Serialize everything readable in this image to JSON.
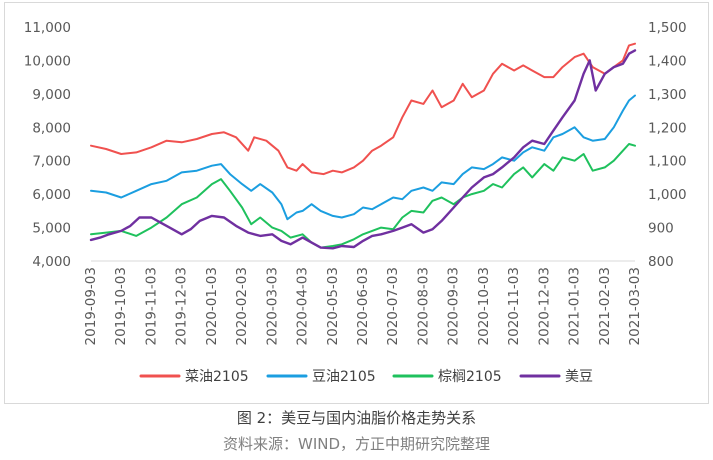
{
  "figure": {
    "caption": "图 2：美豆与国内油脂价格走势关系",
    "source": "资料来源：WIND，方正中期研究院整理"
  },
  "chart_data": {
    "type": "line",
    "x_ticks": [
      "2019-09-03",
      "2019-10-03",
      "2019-11-03",
      "2019-12-03",
      "2020-01-03",
      "2020-02-03",
      "2020-03-03",
      "2020-04-03",
      "2020-05-03",
      "2020-06-03",
      "2020-07-03",
      "2020-08-03",
      "2020-09-03",
      "2020-10-03",
      "2020-11-03",
      "2020-12-03",
      "2021-01-03",
      "2021-02-03",
      "2021-03-03"
    ],
    "y_left": {
      "ticks": [
        "4,000",
        "5,000",
        "6,000",
        "7,000",
        "8,000",
        "9,000",
        "10,000",
        "11,000"
      ],
      "min": 4000,
      "max": 11000
    },
    "y_right": {
      "ticks": [
        "800",
        "900",
        "1,000",
        "1,100",
        "1,200",
        "1,300",
        "1,400",
        "1,500"
      ],
      "min": 800,
      "max": 1500
    },
    "grid": false,
    "legend_position": "bottom",
    "series": [
      {
        "name": "菜油2105",
        "axis": "left",
        "color": "#f0514f",
        "width": 2,
        "points": [
          [
            0,
            7450
          ],
          [
            0.5,
            7350
          ],
          [
            1,
            7200
          ],
          [
            1.5,
            7250
          ],
          [
            2,
            7400
          ],
          [
            2.5,
            7600
          ],
          [
            3,
            7550
          ],
          [
            3.5,
            7650
          ],
          [
            4,
            7800
          ],
          [
            4.4,
            7850
          ],
          [
            4.8,
            7700
          ],
          [
            5.2,
            7300
          ],
          [
            5.4,
            7700
          ],
          [
            5.8,
            7600
          ],
          [
            6.2,
            7300
          ],
          [
            6.5,
            6800
          ],
          [
            6.8,
            6700
          ],
          [
            7,
            6900
          ],
          [
            7.3,
            6650
          ],
          [
            7.7,
            6600
          ],
          [
            8,
            6700
          ],
          [
            8.3,
            6650
          ],
          [
            8.7,
            6800
          ],
          [
            9,
            7000
          ],
          [
            9.3,
            7300
          ],
          [
            9.6,
            7450
          ],
          [
            10,
            7700
          ],
          [
            10.3,
            8300
          ],
          [
            10.6,
            8800
          ],
          [
            11,
            8700
          ],
          [
            11.3,
            9100
          ],
          [
            11.6,
            8600
          ],
          [
            12,
            8800
          ],
          [
            12.3,
            9300
          ],
          [
            12.6,
            8900
          ],
          [
            13,
            9100
          ],
          [
            13.3,
            9600
          ],
          [
            13.6,
            9900
          ],
          [
            14,
            9700
          ],
          [
            14.3,
            9850
          ],
          [
            14.6,
            9700
          ],
          [
            15,
            9500
          ],
          [
            15.3,
            9500
          ],
          [
            15.6,
            9800
          ],
          [
            16,
            10100
          ],
          [
            16.3,
            10200
          ],
          [
            16.6,
            9800
          ],
          [
            17,
            9600
          ],
          [
            17.3,
            9800
          ],
          [
            17.6,
            10000
          ],
          [
            17.8,
            10450
          ],
          [
            18,
            10500
          ]
        ]
      },
      {
        "name": "豆油2105",
        "axis": "left",
        "color": "#1b9ee0",
        "width": 2,
        "points": [
          [
            0,
            6100
          ],
          [
            0.5,
            6050
          ],
          [
            1,
            5900
          ],
          [
            1.5,
            6100
          ],
          [
            2,
            6300
          ],
          [
            2.5,
            6400
          ],
          [
            3,
            6650
          ],
          [
            3.5,
            6700
          ],
          [
            4,
            6850
          ],
          [
            4.3,
            6900
          ],
          [
            4.6,
            6600
          ],
          [
            5,
            6300
          ],
          [
            5.3,
            6100
          ],
          [
            5.6,
            6300
          ],
          [
            6,
            6050
          ],
          [
            6.3,
            5700
          ],
          [
            6.5,
            5250
          ],
          [
            6.8,
            5450
          ],
          [
            7,
            5500
          ],
          [
            7.3,
            5700
          ],
          [
            7.6,
            5500
          ],
          [
            8,
            5350
          ],
          [
            8.3,
            5300
          ],
          [
            8.7,
            5400
          ],
          [
            9,
            5600
          ],
          [
            9.3,
            5550
          ],
          [
            9.6,
            5700
          ],
          [
            10,
            5900
          ],
          [
            10.3,
            5850
          ],
          [
            10.6,
            6100
          ],
          [
            11,
            6200
          ],
          [
            11.3,
            6100
          ],
          [
            11.6,
            6350
          ],
          [
            12,
            6300
          ],
          [
            12.3,
            6600
          ],
          [
            12.6,
            6800
          ],
          [
            13,
            6750
          ],
          [
            13.3,
            6900
          ],
          [
            13.6,
            7100
          ],
          [
            14,
            7000
          ],
          [
            14.3,
            7250
          ],
          [
            14.6,
            7400
          ],
          [
            15,
            7300
          ],
          [
            15.3,
            7700
          ],
          [
            15.6,
            7800
          ],
          [
            16,
            8000
          ],
          [
            16.3,
            7700
          ],
          [
            16.6,
            7600
          ],
          [
            17,
            7650
          ],
          [
            17.3,
            8000
          ],
          [
            17.6,
            8500
          ],
          [
            17.8,
            8800
          ],
          [
            18,
            8950
          ]
        ]
      },
      {
        "name": "棕榈2105",
        "axis": "left",
        "color": "#1fc15d",
        "width": 2,
        "points": [
          [
            0,
            4800
          ],
          [
            0.5,
            4850
          ],
          [
            1,
            4900
          ],
          [
            1.5,
            4750
          ],
          [
            2,
            5000
          ],
          [
            2.5,
            5300
          ],
          [
            3,
            5700
          ],
          [
            3.5,
            5900
          ],
          [
            4,
            6300
          ],
          [
            4.3,
            6450
          ],
          [
            4.6,
            6100
          ],
          [
            5,
            5600
          ],
          [
            5.3,
            5100
          ],
          [
            5.6,
            5300
          ],
          [
            6,
            5000
          ],
          [
            6.3,
            4900
          ],
          [
            6.6,
            4700
          ],
          [
            7,
            4800
          ],
          [
            7.3,
            4550
          ],
          [
            7.6,
            4400
          ],
          [
            8,
            4450
          ],
          [
            8.3,
            4500
          ],
          [
            8.7,
            4650
          ],
          [
            9,
            4800
          ],
          [
            9.3,
            4900
          ],
          [
            9.6,
            5000
          ],
          [
            10,
            4950
          ],
          [
            10.3,
            5300
          ],
          [
            10.6,
            5500
          ],
          [
            11,
            5450
          ],
          [
            11.3,
            5800
          ],
          [
            11.6,
            5900
          ],
          [
            12,
            5700
          ],
          [
            12.3,
            5900
          ],
          [
            12.6,
            6000
          ],
          [
            13,
            6100
          ],
          [
            13.3,
            6300
          ],
          [
            13.6,
            6200
          ],
          [
            14,
            6600
          ],
          [
            14.3,
            6800
          ],
          [
            14.6,
            6500
          ],
          [
            15,
            6900
          ],
          [
            15.3,
            6700
          ],
          [
            15.6,
            7100
          ],
          [
            16,
            7000
          ],
          [
            16.3,
            7200
          ],
          [
            16.6,
            6700
          ],
          [
            17,
            6800
          ],
          [
            17.3,
            7000
          ],
          [
            17.6,
            7300
          ],
          [
            17.8,
            7500
          ],
          [
            18,
            7450
          ]
        ]
      },
      {
        "name": "美豆",
        "axis": "right",
        "color": "#7030a0",
        "width": 2.4,
        "points": [
          [
            0,
            863
          ],
          [
            0.3,
            870
          ],
          [
            0.6,
            880
          ],
          [
            1,
            890
          ],
          [
            1.3,
            905
          ],
          [
            1.6,
            930
          ],
          [
            2,
            930
          ],
          [
            2.3,
            915
          ],
          [
            2.6,
            900
          ],
          [
            3,
            880
          ],
          [
            3.3,
            895
          ],
          [
            3.6,
            920
          ],
          [
            4,
            935
          ],
          [
            4.4,
            930
          ],
          [
            4.8,
            905
          ],
          [
            5.2,
            885
          ],
          [
            5.6,
            875
          ],
          [
            6,
            880
          ],
          [
            6.3,
            860
          ],
          [
            6.6,
            850
          ],
          [
            7,
            870
          ],
          [
            7.3,
            855
          ],
          [
            7.6,
            840
          ],
          [
            8,
            838
          ],
          [
            8.3,
            845
          ],
          [
            8.7,
            842
          ],
          [
            9,
            860
          ],
          [
            9.3,
            875
          ],
          [
            9.6,
            880
          ],
          [
            10,
            890
          ],
          [
            10.3,
            900
          ],
          [
            10.6,
            910
          ],
          [
            11,
            885
          ],
          [
            11.3,
            895
          ],
          [
            11.6,
            920
          ],
          [
            12,
            960
          ],
          [
            12.3,
            990
          ],
          [
            12.6,
            1020
          ],
          [
            13,
            1050
          ],
          [
            13.3,
            1060
          ],
          [
            13.6,
            1080
          ],
          [
            14,
            1110
          ],
          [
            14.3,
            1140
          ],
          [
            14.6,
            1160
          ],
          [
            15,
            1150
          ],
          [
            15.3,
            1190
          ],
          [
            15.6,
            1230
          ],
          [
            16,
            1280
          ],
          [
            16.3,
            1360
          ],
          [
            16.5,
            1400
          ],
          [
            16.7,
            1310
          ],
          [
            17,
            1360
          ],
          [
            17.3,
            1380
          ],
          [
            17.6,
            1390
          ],
          [
            17.8,
            1420
          ],
          [
            18,
            1430
          ]
        ]
      }
    ]
  }
}
